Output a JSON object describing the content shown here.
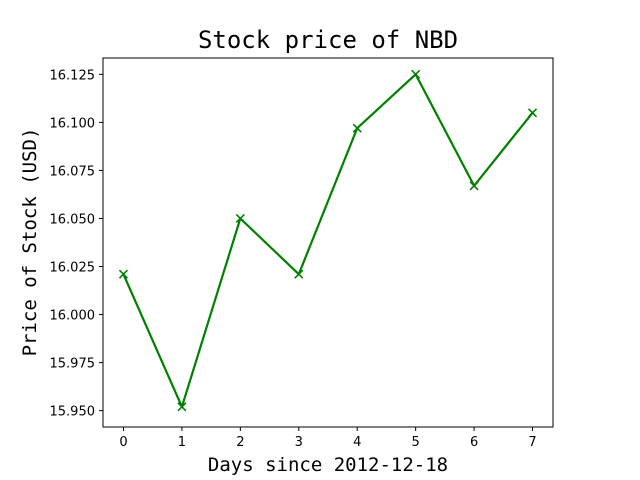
{
  "chart_data": {
    "type": "line",
    "title": "Stock price of NBD",
    "xlabel": "Days since 2012-12-18",
    "ylabel": "Price of Stock (USD)",
    "x": [
      0,
      1,
      2,
      3,
      4,
      5,
      6,
      7
    ],
    "series": [
      {
        "values": [
          16.021,
          15.952,
          16.05,
          16.021,
          16.097,
          16.125,
          16.067,
          16.105
        ],
        "color": "#008000",
        "marker": "x"
      }
    ],
    "xticks": [
      "0",
      "1",
      "2",
      "3",
      "4",
      "5",
      "6",
      "7"
    ],
    "yticks": [
      "15.950",
      "15.975",
      "16.000",
      "16.025",
      "16.050",
      "16.075",
      "16.100",
      "16.125"
    ],
    "ytick_values": [
      15.95,
      15.975,
      16.0,
      16.025,
      16.05,
      16.075,
      16.1,
      16.125
    ],
    "xlim": [
      -0.35,
      7.35
    ],
    "ylim": [
      15.9415,
      16.1335
    ],
    "grid": false,
    "legend": "none"
  }
}
